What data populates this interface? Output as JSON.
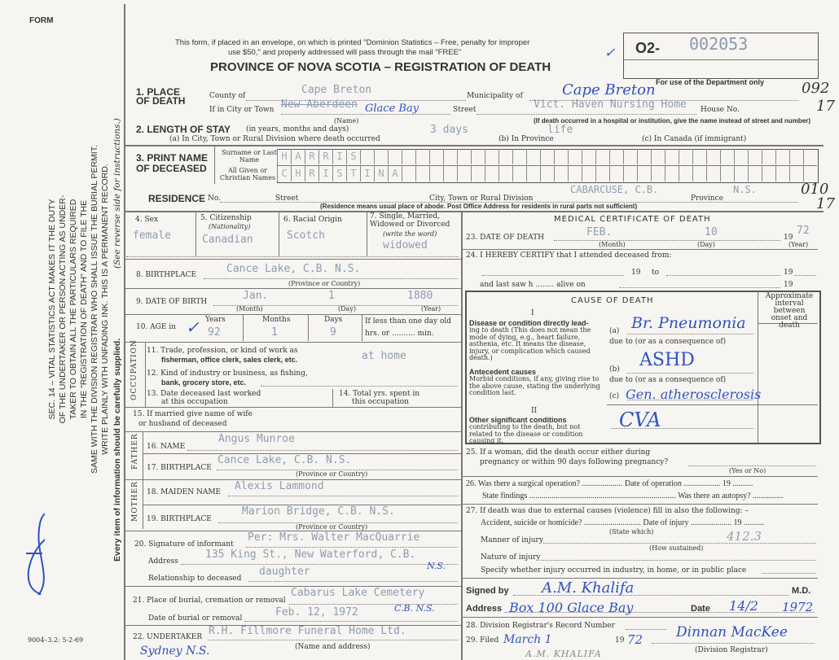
{
  "margin": {
    "form_label": "FORM",
    "instructions": [
      "SEC. 14 – VITAL STATISTICS ACT MAKES IT THE DUTY",
      "OF THE UNDERTAKER OR PERSON ACTING AS UNDER-",
      "TAKER TO OBTAIN ALL THE PARTICULARS REQUIRED",
      "IN THE \"REGISTRATION OF DEATH\" AND TO FILE THE",
      "SAME WITH THE DIVISION REGISTRAR WHO SHALL ISSUE THE BURIAL PERMIT.",
      "WRITE PLAINLY WITH UNFADING INK. THIS IS A PERMANENT RECORD."
    ],
    "every_item": "Every item of information should be carefully supplied.",
    "see_reverse": "(See reverse side for instructions.)",
    "form_code": "9004–3.2: 5-2-69"
  },
  "header": {
    "notice1": "This form, if placed in an envelope, on which is printed \"Dominion Statistics – Free, penalty for improper",
    "notice2": "use $50,\" and properly addressed will pass through the mail \"FREE\"",
    "title": "PROVINCE OF NOVA SCOTIA – REGISTRATION OF DEATH",
    "reg_prefix": "O2-",
    "reg_number": "002053",
    "dept_only": "For use of the Department only",
    "dept_codes": [
      "092",
      "17",
      "010",
      "17"
    ]
  },
  "place": {
    "label": "1. PLACE OF DEATH",
    "county_label": "County of",
    "county": "Cape Breton",
    "municipality_label": "Municipality of",
    "municipality": "Cape Breton",
    "city_label": "If in City or Town",
    "city": "New Aberdeen",
    "city_hand": "Glace Bay",
    "name_label": "(Name)",
    "street_label": "Street",
    "street": "Vict. Haven Nursing Home",
    "house_label": "House No.",
    "note": "(If death occurred in a hospital or institution, give the name instead of street and number)"
  },
  "stay": {
    "label": "2. LENGTH OF STAY",
    "label_sub": "(in years, months and days)",
    "a_label": "(a) In City, Town or Rural Division where death occurred",
    "a": "3 days",
    "b_label": "(b) In Province",
    "b": "life",
    "c_label": "(c) In Canada (if immigrant)"
  },
  "name": {
    "label": "3. PRINT NAME OF DECEASED",
    "surname_label": "Surname or Last Name",
    "given_label": "All Given or Christian Names",
    "surname_letters": [
      "H",
      "A",
      "R",
      "R",
      "I",
      "S"
    ],
    "given_letters": [
      "C",
      "H",
      "R",
      "I",
      "S",
      "T",
      "I",
      "N",
      "A"
    ]
  },
  "residence": {
    "label": "RESIDENCE",
    "no_label": "No.",
    "street_label": "Street",
    "city_label": "City, Town or Rural Division",
    "city": "CABARCUSE, C.B.",
    "province_label": "Province",
    "province": "N.S.",
    "note": "(Residence means usual place of abode. Post Office Address for residents in rural parts not sufficient)"
  },
  "personal": {
    "sex_label": "4. Sex",
    "sex": "female",
    "citizenship_label": "5. Citizenship",
    "citizenship_sub": "(Nationality)",
    "citizenship": "Canadian",
    "racial_label": "6. Racial Origin",
    "racial": "Scotch",
    "marital_label": "7. Single, Married, Widowed or Divorced",
    "marital_sub": "(write the word)",
    "marital": "widowed",
    "birthplace_label": "8. BIRTHPLACE",
    "birthplace": "Cance Lake, C.B. N.S.",
    "province_country": "(Province or Country)",
    "dob_label": "9. DATE OF BIRTH",
    "dob_month": "Jan.",
    "dob_day": "1",
    "dob_year": "1880",
    "month": "(Month)",
    "day": "(Day)",
    "year": "(Year)",
    "age_label": "10. AGE in",
    "years_label": "Years",
    "years": "92",
    "months_label": "Months",
    "months": "1",
    "days_label": "Days",
    "days": "9",
    "lessday": "If less than one day old",
    "hrsmin": "hrs. or .......... min."
  },
  "occupation": {
    "side": "OCCUPATION",
    "q11a": "11. Trade, profession, or kind of work as",
    "q11b": "fisherman, office clerk, sales clerk, etc.",
    "q11": "at home",
    "q12a": "12. Kind of industry or business, as fishing,",
    "q12b": "bank, grocery store, etc.",
    "q13a": "13. Date deceased last worked",
    "q13b": "at this occupation",
    "q14a": "14. Total yrs. spent in",
    "q14b": "this occupation"
  },
  "spouse": {
    "q15a": "15. If married give name of wife",
    "q15b": "or husband of deceased"
  },
  "father": {
    "side": "FATHER",
    "name_label": "16. NAME",
    "name": "Angus Munroe",
    "birthplace_label": "17. BIRTHPLACE",
    "birthplace": "Cance Lake, C.B. N.S."
  },
  "mother": {
    "side": "MOTHER",
    "maiden_label": "18. MAIDEN NAME",
    "maiden": "Alexis Lammond",
    "birthplace_label": "19. BIRTHPLACE",
    "birthplace": "Marion Bridge, C.B. N.S."
  },
  "informant": {
    "label": "20. Signature of informant",
    "signature": "Per: Mrs. Walter MacQuarrie",
    "address_label": "Address",
    "address": "135 King St., New Waterford, C.B.",
    "address_hand": "N.S.",
    "relationship_label": "Relationship to deceased",
    "relationship": "daughter"
  },
  "burial": {
    "place_label": "21. Place of burial, cremation or removal",
    "place": "Cabarus Lake Cemetery",
    "place_hand": "C.B. N.S.",
    "date_label": "Date of burial or removal",
    "date": "Feb. 12, 1972"
  },
  "undertaker": {
    "label": "22. UNDERTAKER",
    "value": "R.H. Fillmore Funeral Home Ltd.",
    "hand": "Sydney N.S.",
    "sub": "(Name and address)"
  },
  "medical": {
    "title": "MEDICAL CERTIFICATE OF DEATH",
    "dod_label": "23. DATE OF DEATH",
    "dod_month": "FEB.",
    "dod_day": "10",
    "dod_year": "72",
    "nineteen": "19",
    "certify": "24. I HEREBY CERTIFY that I attended deceased from:",
    "to": "to",
    "lastsaw": "and last saw h ........ alive on",
    "cause_title": "CAUSE OF DEATH",
    "roman1": "I",
    "roman2": "II",
    "interval": "Approximate interval between onset and death",
    "direct_title": "Disease or condition directly lead-",
    "direct_body": "ing to death (This does not mean the mode of dying, e.g., heart failure, asthenia, etc. It means the disease, injury, or complication which caused death.)",
    "antecedent_title": "Antecedent causes",
    "antecedent_body": "Morbid conditions, if any, giving rise to the above cause, stating the underlying condition last.",
    "other_title": "Other significant conditions",
    "other_body": "contributing to the death, but not related to the disease or condition causing it.",
    "a": "(a)",
    "b": "(b)",
    "c": "(c)",
    "due": "due to (or as a consequence of)",
    "cause_a": "Br. Pneumonia",
    "cause_b": "ASHD",
    "cause_c": "Gen. atherosclerosis",
    "cause_other": "CVA",
    "q25a": "25. If a woman, did the death occur either during",
    "q25b": "pregnancy or within 90 days following pregnancy?",
    "yesno": "(Yes or No)",
    "q26": "26. Was there a surgical operation? ....................  Date of operation .................. 19 ..........",
    "q26b": "State findings ........................................................................ Was there an autopsy? ...............",
    "q27": "27. If death was due to external causes (violence) fill in also the following: –",
    "q27a": "Accident, suicide or homicide? ............................ Date of injury .................... 19 ..........",
    "state_which": "(State which)",
    "manner": "Manner of injury",
    "how": "(How sustained)",
    "code": "412.3",
    "nature": "Nature of injury",
    "specify": "Specify whether injury occurred in industry, in home, or in public place",
    "signed_label": "Signed by",
    "signed": "A.M. Khalifa",
    "md": "M.D.",
    "address_label": "Address",
    "address": "Box 100 Glace Bay",
    "date_label": "Date",
    "date": "14/2",
    "year_full": "1972",
    "q28": "28. Division Registrar's Record Number",
    "q29": "29. Filed",
    "filed": "March 1",
    "filed_year": "72",
    "registrar_sig": "Dinnan MacKee",
    "registrar_label": "(Division Registrar)",
    "printed_name": "A.M. KHALIFA"
  }
}
